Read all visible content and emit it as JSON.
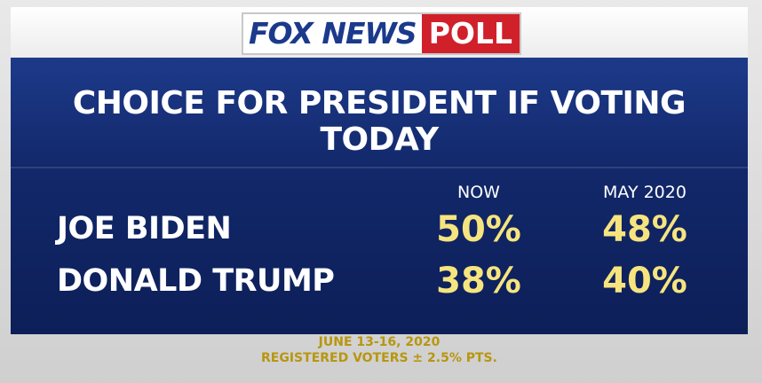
{
  "header": {
    "logo": "FOX NEWS",
    "badge": "POLL"
  },
  "title": "CHOICE FOR PRESIDENT IF VOTING TODAY",
  "table": {
    "columns": [
      "NOW",
      "MAY 2020"
    ],
    "rows": [
      [
        "JOE BIDEN",
        "50%",
        "48%"
      ],
      [
        "DONALD TRUMP",
        "38%",
        "40%"
      ]
    ]
  },
  "footer": [
    "JUNE 13-16, 2020",
    "REGISTERED VOTERS ± 2.5% PTS."
  ]
}
